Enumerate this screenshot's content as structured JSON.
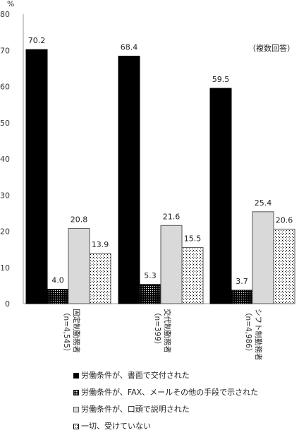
{
  "chart_data": {
    "type": "bar",
    "unit": "%",
    "note": "（複数回答）",
    "ylim": [
      0,
      80
    ],
    "yticks": [
      "0",
      "10",
      "20",
      "30",
      "40",
      "50",
      "60",
      "70",
      "80"
    ],
    "grid": false,
    "legend_position": "bottom",
    "categories": [
      {
        "name": "固定制勤務者",
        "n": "（n=4,545）"
      },
      {
        "name": "交代制勤務者",
        "n": "（n=399）"
      },
      {
        "name": "シフト制勤務者",
        "n": "（n=4,986）"
      }
    ],
    "series": [
      {
        "name": "労働条件が、書面で交付された",
        "values": [
          70.2,
          68.4,
          59.5
        ],
        "labels": [
          "70.2",
          "68.4",
          "59.5"
        ]
      },
      {
        "name": "労働条件が、FAX、メールその他の手段で示された",
        "values": [
          4.0,
          5.3,
          3.7
        ],
        "labels": [
          "4.0",
          "5.3",
          "3.7"
        ]
      },
      {
        "name": "労働条件が、口頭で説明された",
        "values": [
          20.8,
          21.6,
          25.4
        ],
        "labels": [
          "20.8",
          "21.6",
          "25.4"
        ]
      },
      {
        "name": "一切、受けていない",
        "values": [
          13.9,
          15.5,
          20.6
        ],
        "labels": [
          "13.9",
          "15.5",
          "20.6"
        ]
      }
    ]
  }
}
